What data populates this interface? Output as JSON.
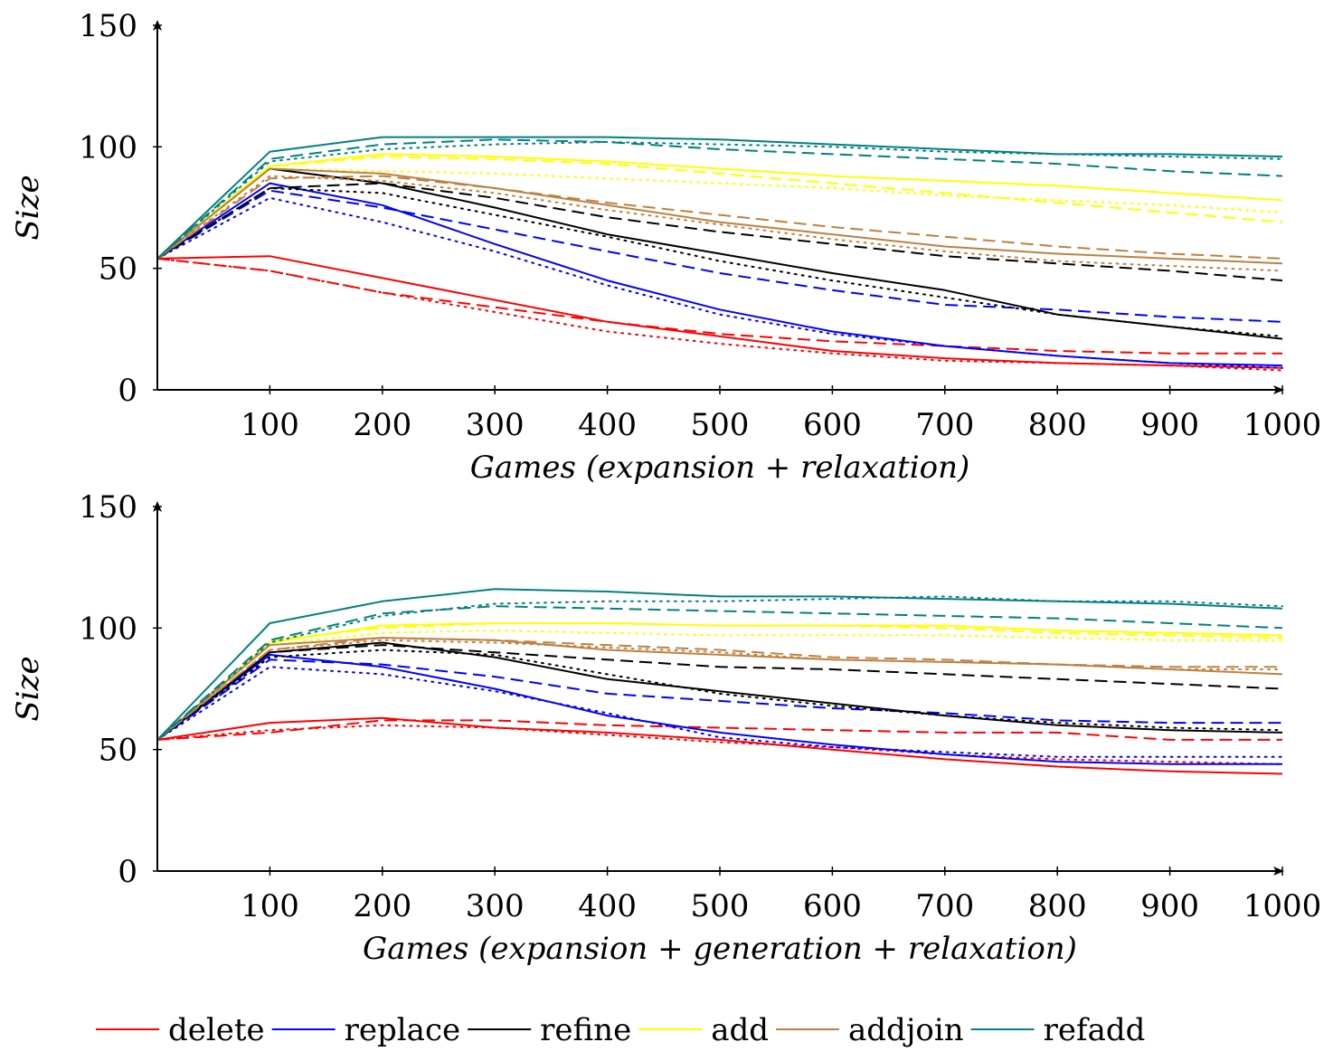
{
  "colors": {
    "delete": "#ff0000",
    "replace": "#0000ff",
    "refine": "#000000",
    "add": "#ffff00",
    "addjoin": "#bf8040",
    "refadd": "#008080"
  },
  "legend": {
    "position": "bottom",
    "items": [
      {
        "label": "delete",
        "color_key": "delete"
      },
      {
        "label": "replace",
        "color_key": "replace"
      },
      {
        "label": "refine",
        "color_key": "refine"
      },
      {
        "label": "add",
        "color_key": "add"
      },
      {
        "label": "addjoin",
        "color_key": "addjoin"
      },
      {
        "label": "refadd",
        "color_key": "refadd"
      }
    ]
  },
  "chart_data": [
    {
      "type": "line",
      "xlabel": "Games (expansion + relaxation)",
      "ylabel": "Size",
      "xlim": [
        0,
        1000
      ],
      "ylim": [
        0,
        150
      ],
      "xticks": [
        100,
        200,
        300,
        400,
        500,
        600,
        700,
        800,
        900,
        1000
      ],
      "yticks": [
        0,
        50,
        100,
        150
      ],
      "grid": false,
      "x": [
        0,
        100,
        200,
        300,
        400,
        500,
        600,
        700,
        800,
        900,
        1000
      ],
      "series": [
        {
          "color_key": "delete",
          "style": "solid",
          "values": [
            54,
            55,
            46,
            37,
            28,
            22,
            16,
            13,
            11,
            10,
            9
          ]
        },
        {
          "color_key": "delete",
          "style": "dashed",
          "values": [
            54,
            49,
            40,
            34,
            28,
            23,
            20,
            18,
            16,
            15,
            15
          ]
        },
        {
          "color_key": "delete",
          "style": "dotted",
          "values": [
            54,
            49,
            40,
            32,
            24,
            19,
            15,
            12,
            11,
            10,
            8
          ]
        },
        {
          "color_key": "replace",
          "style": "solid",
          "values": [
            54,
            85,
            76,
            60,
            45,
            33,
            24,
            18,
            14,
            11,
            10
          ]
        },
        {
          "color_key": "replace",
          "style": "dashed",
          "values": [
            54,
            82,
            75,
            66,
            57,
            48,
            41,
            35,
            33,
            30,
            28
          ]
        },
        {
          "color_key": "replace",
          "style": "dotted",
          "values": [
            54,
            79,
            69,
            57,
            43,
            31,
            23,
            18,
            14,
            11,
            9
          ]
        },
        {
          "color_key": "refine",
          "style": "solid",
          "values": [
            54,
            91,
            85,
            75,
            64,
            56,
            48,
            41,
            31,
            26,
            21
          ]
        },
        {
          "color_key": "refine",
          "style": "dashed",
          "values": [
            54,
            83,
            85,
            79,
            71,
            65,
            60,
            55,
            52,
            49,
            45
          ]
        },
        {
          "color_key": "refine",
          "style": "dotted",
          "values": [
            54,
            83,
            81,
            72,
            63,
            53,
            45,
            38,
            31,
            26,
            22
          ]
        },
        {
          "color_key": "add",
          "style": "solid",
          "values": [
            54,
            92,
            97,
            96,
            94,
            91,
            88,
            86,
            84,
            81,
            78
          ]
        },
        {
          "color_key": "add",
          "style": "dashed",
          "values": [
            54,
            92,
            96,
            95,
            93,
            89,
            85,
            81,
            77,
            73,
            69
          ]
        },
        {
          "color_key": "add",
          "style": "dotted",
          "values": [
            54,
            91,
            90,
            89,
            87,
            85,
            83,
            80,
            78,
            76,
            73
          ]
        },
        {
          "color_key": "addjoin",
          "style": "solid",
          "values": [
            54,
            91,
            89,
            83,
            76,
            69,
            64,
            59,
            56,
            54,
            52
          ]
        },
        {
          "color_key": "addjoin",
          "style": "dashed",
          "values": [
            54,
            87,
            88,
            83,
            77,
            72,
            67,
            63,
            59,
            56,
            54
          ]
        },
        {
          "color_key": "addjoin",
          "style": "dotted",
          "values": [
            54,
            88,
            86,
            81,
            74,
            68,
            62,
            57,
            53,
            51,
            49
          ]
        },
        {
          "color_key": "refadd",
          "style": "solid",
          "values": [
            54,
            98,
            104,
            104,
            104,
            103,
            101,
            99,
            97,
            97,
            96
          ]
        },
        {
          "color_key": "refadd",
          "style": "dashed",
          "values": [
            54,
            95,
            101,
            103,
            102,
            99,
            97,
            95,
            93,
            90,
            88
          ]
        },
        {
          "color_key": "refadd",
          "style": "dotted",
          "values": [
            54,
            94,
            99,
            101,
            102,
            101,
            100,
            98,
            97,
            96,
            95
          ]
        }
      ]
    },
    {
      "type": "line",
      "xlabel": "Games (expansion + generation + relaxation)",
      "ylabel": "Size",
      "xlim": [
        0,
        1000
      ],
      "ylim": [
        0,
        150
      ],
      "xticks": [
        100,
        200,
        300,
        400,
        500,
        600,
        700,
        800,
        900,
        1000
      ],
      "yticks": [
        0,
        50,
        100,
        150
      ],
      "grid": false,
      "x": [
        0,
        100,
        200,
        300,
        400,
        500,
        600,
        700,
        800,
        900,
        1000
      ],
      "series": [
        {
          "color_key": "delete",
          "style": "solid",
          "values": [
            54,
            61,
            63,
            59,
            57,
            54,
            50,
            46,
            43,
            41,
            40
          ]
        },
        {
          "color_key": "delete",
          "style": "dashed",
          "values": [
            54,
            57,
            62,
            62,
            60,
            59,
            58,
            57,
            57,
            54,
            54
          ]
        },
        {
          "color_key": "delete",
          "style": "dotted",
          "values": [
            54,
            58,
            60,
            59,
            56,
            53,
            51,
            48,
            46,
            45,
            44
          ]
        },
        {
          "color_key": "replace",
          "style": "solid",
          "values": [
            54,
            89,
            84,
            75,
            64,
            57,
            52,
            48,
            45,
            44,
            44
          ]
        },
        {
          "color_key": "replace",
          "style": "dashed",
          "values": [
            54,
            87,
            85,
            80,
            73,
            70,
            67,
            65,
            62,
            61,
            61
          ]
        },
        {
          "color_key": "replace",
          "style": "dotted",
          "values": [
            54,
            84,
            81,
            74,
            65,
            55,
            51,
            49,
            47,
            47,
            47
          ]
        },
        {
          "color_key": "refine",
          "style": "solid",
          "values": [
            54,
            90,
            94,
            88,
            79,
            74,
            69,
            64,
            60,
            58,
            57
          ]
        },
        {
          "color_key": "refine",
          "style": "dashed",
          "values": [
            54,
            90,
            93,
            90,
            87,
            84,
            83,
            81,
            79,
            77,
            75
          ]
        },
        {
          "color_key": "refine",
          "style": "dotted",
          "values": [
            54,
            88,
            91,
            89,
            81,
            73,
            68,
            64,
            61,
            59,
            58
          ]
        },
        {
          "color_key": "add",
          "style": "solid",
          "values": [
            54,
            94,
            101,
            102,
            102,
            101,
            101,
            101,
            99,
            98,
            97
          ]
        },
        {
          "color_key": "add",
          "style": "dashed",
          "values": [
            54,
            95,
            100,
            102,
            102,
            101,
            101,
            100,
            98,
            97,
            96
          ]
        },
        {
          "color_key": "add",
          "style": "dotted",
          "values": [
            54,
            93,
            98,
            99,
            98,
            97,
            97,
            97,
            96,
            95,
            95
          ]
        },
        {
          "color_key": "addjoin",
          "style": "solid",
          "values": [
            54,
            93,
            96,
            95,
            91,
            89,
            87,
            86,
            85,
            83,
            81
          ]
        },
        {
          "color_key": "addjoin",
          "style": "dashed",
          "values": [
            54,
            91,
            96,
            95,
            93,
            91,
            88,
            87,
            85,
            84,
            84
          ]
        },
        {
          "color_key": "addjoin",
          "style": "dotted",
          "values": [
            54,
            91,
            95,
            94,
            92,
            90,
            87,
            86,
            85,
            83,
            83
          ]
        },
        {
          "color_key": "refadd",
          "style": "solid",
          "values": [
            54,
            102,
            111,
            116,
            115,
            113,
            113,
            112,
            111,
            110,
            108
          ]
        },
        {
          "color_key": "refadd",
          "style": "dashed",
          "values": [
            54,
            95,
            106,
            109,
            108,
            107,
            106,
            105,
            104,
            102,
            100
          ]
        },
        {
          "color_key": "refadd",
          "style": "dotted",
          "values": [
            54,
            94,
            105,
            110,
            111,
            111,
            112,
            113,
            111,
            111,
            109
          ]
        }
      ]
    }
  ]
}
